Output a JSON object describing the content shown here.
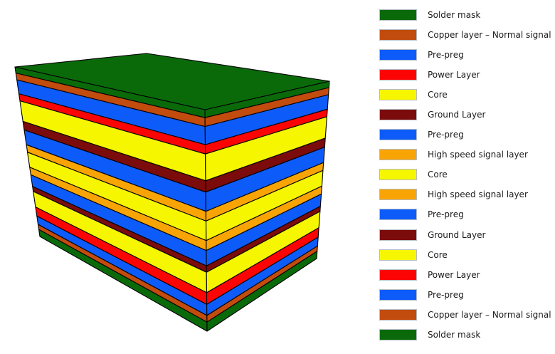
{
  "palette": {
    "solder_mask": "#0a6a0a",
    "copper_signal": "#c24b0e",
    "pre_preg": "#0d5cfa",
    "power": "#fc0404",
    "core": "#f6f600",
    "ground": "#7c0b0b",
    "high_speed": "#f8a405",
    "outline": "#000000",
    "swatch_border": "#b4bcc4",
    "label_text": "#1a1a1a"
  },
  "stack": {
    "type": "pcb-layer-stackup-3d",
    "layers": [
      {
        "name": "Solder mask",
        "color": "solder_mask",
        "thickness": 36
      },
      {
        "name": "Copper layer – Normal signal",
        "color": "copper_signal",
        "thickness": 40
      },
      {
        "name": "Pre-preg",
        "color": "pre_preg",
        "thickness": 82
      },
      {
        "name": "Power Layer",
        "color": "power",
        "thickness": 42
      },
      {
        "name": "Core",
        "color": "core",
        "thickness": 121
      },
      {
        "name": "Ground Layer",
        "color": "ground",
        "thickness": 51
      },
      {
        "name": "Pre-preg",
        "color": "pre_preg",
        "thickness": 87
      },
      {
        "name": "High speed signal layer",
        "color": "high_speed",
        "thickness": 44
      },
      {
        "name": "Core",
        "color": "core",
        "thickness": 88
      },
      {
        "name": "High speed signal layer",
        "color": "high_speed",
        "thickness": 45
      },
      {
        "name": "Pre-preg",
        "color": "pre_preg",
        "thickness": 69
      },
      {
        "name": "Ground Layer",
        "color": "ground",
        "thickness": 29
      },
      {
        "name": "Core",
        "color": "core",
        "thickness": 92
      },
      {
        "name": "Power Layer",
        "color": "power",
        "thickness": 53
      },
      {
        "name": "Pre-preg",
        "color": "pre_preg",
        "thickness": 50
      },
      {
        "name": "Copper layer – Normal signal",
        "color": "copper_signal",
        "thickness": 30
      },
      {
        "name": "Solder mask",
        "color": "solder_mask",
        "thickness": 41
      }
    ]
  },
  "legend": {
    "items": [
      {
        "label": "Solder mask",
        "color": "solder_mask"
      },
      {
        "label": "Copper layer – Normal signal",
        "color": "copper_signal"
      },
      {
        "label": "Pre-preg",
        "color": "pre_preg"
      },
      {
        "label": "Power Layer",
        "color": "power"
      },
      {
        "label": "Core",
        "color": "core"
      },
      {
        "label": "Ground Layer",
        "color": "ground"
      },
      {
        "label": "Pre-preg",
        "color": "pre_preg"
      },
      {
        "label": "High speed signal layer",
        "color": "high_speed"
      },
      {
        "label": "Core",
        "color": "core"
      },
      {
        "label": "High speed signal layer",
        "color": "high_speed"
      },
      {
        "label": "Pre-preg",
        "color": "pre_preg"
      },
      {
        "label": "Ground Layer",
        "color": "ground"
      },
      {
        "label": "Core",
        "color": "core"
      },
      {
        "label": "Power Layer",
        "color": "power"
      },
      {
        "label": "Pre-preg",
        "color": "pre_preg"
      },
      {
        "label": "Copper layer – Normal signal",
        "color": "copper_signal"
      },
      {
        "label": "Solder mask",
        "color": "solder_mask"
      }
    ]
  }
}
